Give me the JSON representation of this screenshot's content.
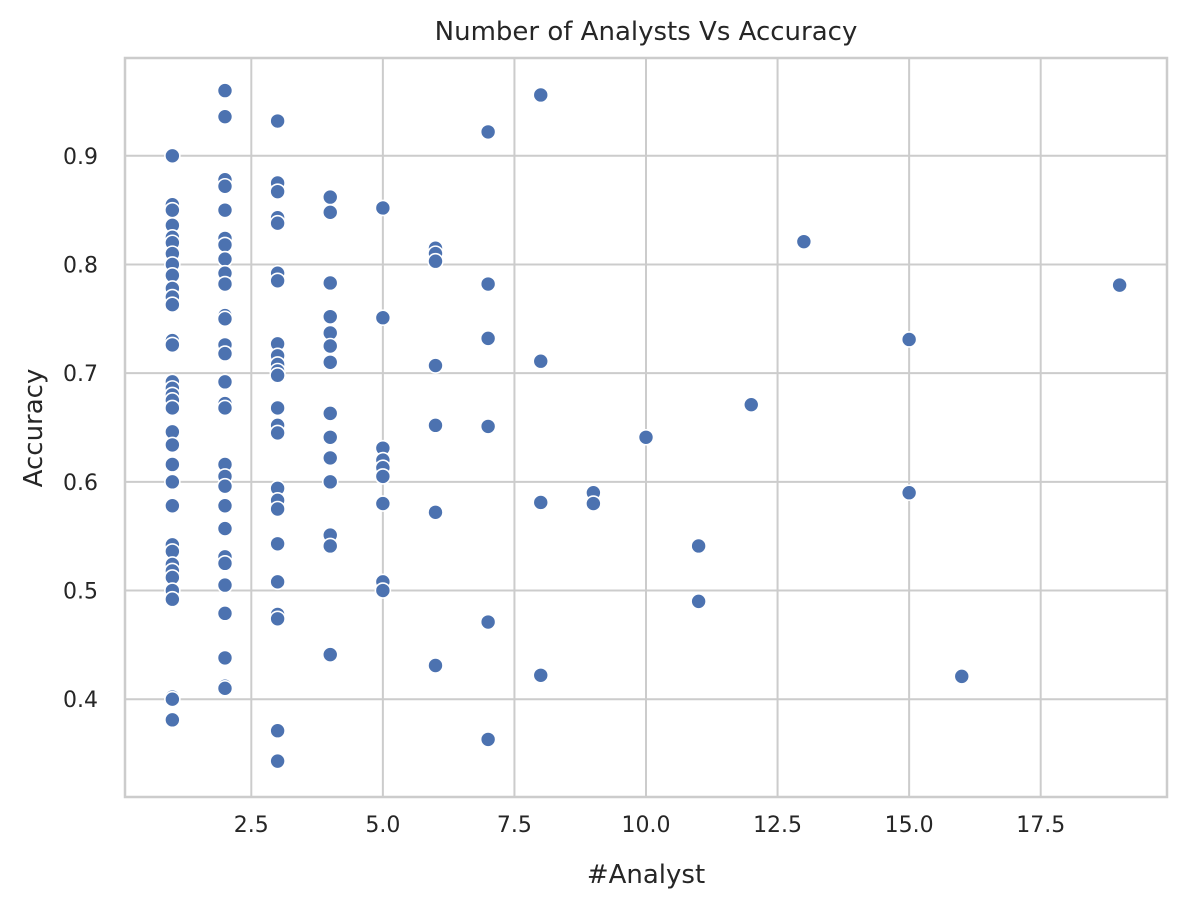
{
  "chart_data": {
    "type": "scatter",
    "title": "Number of Analysts Vs Accuracy",
    "xlabel": "#Analyst",
    "ylabel": "Accuracy",
    "xlim": [
      0.1,
      19.9
    ],
    "ylim": [
      0.31,
      0.99
    ],
    "xticks": [
      2.5,
      5.0,
      7.5,
      10.0,
      12.5,
      15.0,
      17.5
    ],
    "xtick_labels": [
      "2.5",
      "5.0",
      "7.5",
      "10.0",
      "12.5",
      "15.0",
      "17.5"
    ],
    "yticks": [
      0.4,
      0.5,
      0.6,
      0.7,
      0.8,
      0.9
    ],
    "ytick_labels": [
      "0.4",
      "0.5",
      "0.6",
      "0.7",
      "0.8",
      "0.9"
    ],
    "grid": true,
    "marker_color": "#4c72b0",
    "points": [
      [
        1,
        0.9
      ],
      [
        1,
        0.855
      ],
      [
        1,
        0.85
      ],
      [
        1,
        0.836
      ],
      [
        1,
        0.825
      ],
      [
        1,
        0.82
      ],
      [
        1,
        0.81
      ],
      [
        1,
        0.8
      ],
      [
        1,
        0.79
      ],
      [
        1,
        0.778
      ],
      [
        1,
        0.77
      ],
      [
        1,
        0.763
      ],
      [
        1,
        0.73
      ],
      [
        1,
        0.726
      ],
      [
        1,
        0.692
      ],
      [
        1,
        0.686
      ],
      [
        1,
        0.68
      ],
      [
        1,
        0.675
      ],
      [
        1,
        0.668
      ],
      [
        1,
        0.646
      ],
      [
        1,
        0.634
      ],
      [
        1,
        0.616
      ],
      [
        1,
        0.6
      ],
      [
        1,
        0.578
      ],
      [
        1,
        0.542
      ],
      [
        1,
        0.536
      ],
      [
        1,
        0.524
      ],
      [
        1,
        0.518
      ],
      [
        1,
        0.512
      ],
      [
        1,
        0.5
      ],
      [
        1,
        0.492
      ],
      [
        1,
        0.402
      ],
      [
        1,
        0.4
      ],
      [
        1,
        0.381
      ],
      [
        2,
        0.96
      ],
      [
        2,
        0.936
      ],
      [
        2,
        0.878
      ],
      [
        2,
        0.872
      ],
      [
        2,
        0.85
      ],
      [
        2,
        0.824
      ],
      [
        2,
        0.818
      ],
      [
        2,
        0.805
      ],
      [
        2,
        0.792
      ],
      [
        2,
        0.782
      ],
      [
        2,
        0.753
      ],
      [
        2,
        0.75
      ],
      [
        2,
        0.726
      ],
      [
        2,
        0.718
      ],
      [
        2,
        0.692
      ],
      [
        2,
        0.672
      ],
      [
        2,
        0.668
      ],
      [
        2,
        0.616
      ],
      [
        2,
        0.605
      ],
      [
        2,
        0.596
      ],
      [
        2,
        0.578
      ],
      [
        2,
        0.557
      ],
      [
        2,
        0.531
      ],
      [
        2,
        0.525
      ],
      [
        2,
        0.505
      ],
      [
        2,
        0.479
      ],
      [
        2,
        0.438
      ],
      [
        2,
        0.412
      ],
      [
        2,
        0.41
      ],
      [
        3,
        0.932
      ],
      [
        3,
        0.875
      ],
      [
        3,
        0.867
      ],
      [
        3,
        0.843
      ],
      [
        3,
        0.838
      ],
      [
        3,
        0.792
      ],
      [
        3,
        0.785
      ],
      [
        3,
        0.727
      ],
      [
        3,
        0.716
      ],
      [
        3,
        0.708
      ],
      [
        3,
        0.702
      ],
      [
        3,
        0.698
      ],
      [
        3,
        0.668
      ],
      [
        3,
        0.652
      ],
      [
        3,
        0.645
      ],
      [
        3,
        0.594
      ],
      [
        3,
        0.583
      ],
      [
        3,
        0.575
      ],
      [
        3,
        0.543
      ],
      [
        3,
        0.508
      ],
      [
        3,
        0.478
      ],
      [
        3,
        0.474
      ],
      [
        3,
        0.371
      ],
      [
        3,
        0.343
      ],
      [
        4,
        0.862
      ],
      [
        4,
        0.848
      ],
      [
        4,
        0.783
      ],
      [
        4,
        0.752
      ],
      [
        4,
        0.737
      ],
      [
        4,
        0.725
      ],
      [
        4,
        0.71
      ],
      [
        4,
        0.663
      ],
      [
        4,
        0.641
      ],
      [
        4,
        0.622
      ],
      [
        4,
        0.6
      ],
      [
        4,
        0.551
      ],
      [
        4,
        0.541
      ],
      [
        4,
        0.441
      ],
      [
        5,
        0.852
      ],
      [
        5,
        0.751
      ],
      [
        5,
        0.631
      ],
      [
        5,
        0.62
      ],
      [
        5,
        0.613
      ],
      [
        5,
        0.605
      ],
      [
        5,
        0.58
      ],
      [
        5,
        0.508
      ],
      [
        5,
        0.5
      ],
      [
        6,
        0.815
      ],
      [
        6,
        0.81
      ],
      [
        6,
        0.803
      ],
      [
        6,
        0.707
      ],
      [
        6,
        0.652
      ],
      [
        6,
        0.572
      ],
      [
        6,
        0.431
      ],
      [
        7,
        0.922
      ],
      [
        7,
        0.782
      ],
      [
        7,
        0.732
      ],
      [
        7,
        0.651
      ],
      [
        7,
        0.471
      ],
      [
        7,
        0.363
      ],
      [
        8,
        0.956
      ],
      [
        8,
        0.711
      ],
      [
        8,
        0.581
      ],
      [
        8,
        0.422
      ],
      [
        9,
        0.59
      ],
      [
        9,
        0.58
      ],
      [
        10,
        0.641
      ],
      [
        11,
        0.541
      ],
      [
        11,
        0.49
      ],
      [
        12,
        0.671
      ],
      [
        13,
        0.821
      ],
      [
        15,
        0.731
      ],
      [
        15,
        0.59
      ],
      [
        16,
        0.421
      ],
      [
        19,
        0.781
      ]
    ]
  }
}
